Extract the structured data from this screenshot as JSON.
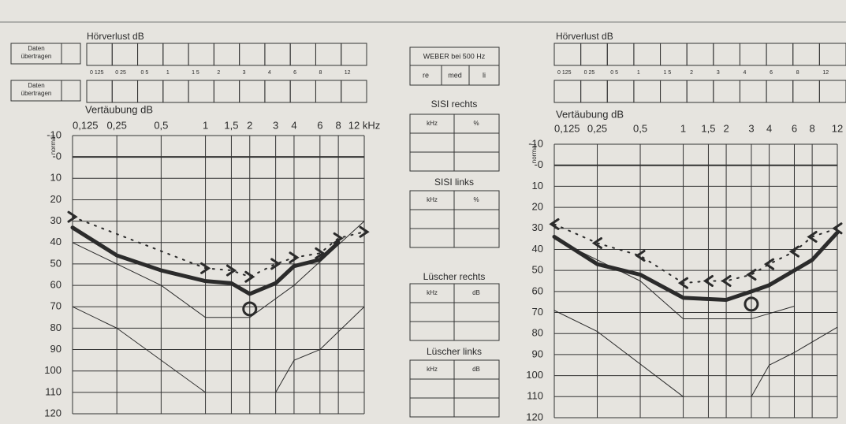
{
  "form": {
    "left": {
      "hoerverlust": "Hörverlust dB",
      "daten_1": [
        "Daten",
        "übertragen"
      ],
      "daten_2": [
        "Daten",
        "übertragen"
      ],
      "cell_labels": [
        "0 125",
        "0 25",
        "0 5",
        "1",
        "1 5",
        "2",
        "3",
        "4",
        "6",
        "8",
        "12"
      ],
      "vertaeubung": "Vertäubung dB"
    },
    "right": {
      "hoerverlust": "Hörverlust dB",
      "cell_labels": [
        "0 125",
        "0 25",
        "0 5",
        "1",
        "1 5",
        "2",
        "3",
        "4",
        "6",
        "8",
        "12"
      ],
      "vertaeubung": "Vertäubung dB"
    },
    "weber": {
      "title": "WEBER bei 500 Hz",
      "cells": [
        "re",
        "med",
        "li"
      ]
    },
    "sisi_rechts": {
      "title": "SISI rechts",
      "headers": [
        "kHz",
        "%"
      ]
    },
    "sisi_links": {
      "title": "SISI links",
      "headers": [
        "kHz",
        "%"
      ]
    },
    "luescher_rechts": {
      "title": "Lüscher rechts",
      "headers": [
        "kHz",
        "dB"
      ]
    },
    "luescher_links": {
      "title": "Lüscher links",
      "headers": [
        "kHz",
        "dB"
      ]
    }
  },
  "chart_data": [
    {
      "type": "line",
      "y_label": "normal",
      "xscale": "log",
      "y_inverted": true,
      "xlim": [
        0.125,
        12
      ],
      "ylim": [
        -10,
        120
      ],
      "xticks": [
        {
          "value": 0.125,
          "label": "0,125"
        },
        {
          "value": 0.25,
          "label": "0,25"
        },
        {
          "value": 0.5,
          "label": "0,5"
        },
        1,
        {
          "value": 1.5,
          "label": "1,5"
        },
        2,
        3,
        4,
        6,
        8,
        {
          "value": 12,
          "label": "12 kHz"
        }
      ],
      "yticks": [
        -10,
        {
          "value": 0,
          "label": "-0"
        },
        10,
        20,
        30,
        40,
        50,
        60,
        70,
        80,
        90,
        100,
        110,
        120
      ],
      "grid": true,
      "color": "#2b2b2b",
      "series": [
        {
          "x": [
            0.125,
            0.25,
            0.5,
            1,
            1.5,
            2,
            3,
            4,
            6,
            8
          ],
          "values": [
            33,
            46,
            53,
            58,
            59,
            64,
            59,
            51,
            48,
            40
          ],
          "width": 5,
          "marker": "none",
          "dash": false
        },
        {
          "x": [
            0.125,
            1,
            1.5,
            2,
            3,
            4,
            6,
            8,
            12
          ],
          "values": [
            28,
            52,
            53,
            56,
            50,
            47,
            45,
            38,
            35
          ],
          "width": 2,
          "marker": "arrow-right",
          "dash": true
        },
        {
          "x": [
            2
          ],
          "values": [
            71
          ],
          "width": 2,
          "marker": "circle",
          "dash": false
        },
        {
          "x": [
            0.125,
            0.5,
            1,
            2,
            4,
            12
          ],
          "values": [
            40,
            60,
            75,
            75,
            60,
            30
          ],
          "width": 1,
          "marker": "none",
          "dash": false
        },
        {
          "x": [
            0.125,
            0.25,
            1
          ],
          "values": [
            70,
            80,
            110
          ],
          "width": 1,
          "marker": "none",
          "dash": false
        },
        {
          "x": [
            3,
            4,
            6,
            12
          ],
          "values": [
            110,
            95,
            90,
            70
          ],
          "width": 1,
          "marker": "none",
          "dash": false
        }
      ]
    },
    {
      "type": "line",
      "y_label": "normal",
      "xscale": "log",
      "y_inverted": true,
      "xlim": [
        0.125,
        12
      ],
      "ylim": [
        -10,
        120
      ],
      "xticks": [
        {
          "value": 0.125,
          "label": "0,125"
        },
        {
          "value": 0.25,
          "label": "0,25"
        },
        {
          "value": 0.5,
          "label": "0,5"
        },
        1,
        {
          "value": 1.5,
          "label": "1,5"
        },
        2,
        3,
        4,
        6,
        8,
        12
      ],
      "yticks": [
        -10,
        {
          "value": 0,
          "label": "-0"
        },
        10,
        20,
        30,
        40,
        50,
        60,
        70,
        80,
        90,
        100,
        110,
        120
      ],
      "grid": true,
      "color": "#2b2b2b",
      "series": [
        {
          "x": [
            0.125,
            0.25,
            0.5,
            1,
            2,
            3,
            4,
            8,
            12
          ],
          "values": [
            34,
            47,
            52,
            63,
            64,
            60,
            57,
            45,
            32
          ],
          "width": 5,
          "marker": "none",
          "dash": false
        },
        {
          "x": [
            0.125,
            0.25,
            0.5,
            1,
            1.5,
            2,
            3,
            4,
            6,
            8,
            12
          ],
          "values": [
            28,
            37,
            43,
            56,
            55,
            55,
            52,
            47,
            41,
            34,
            30
          ],
          "width": 2,
          "marker": "arrow-left",
          "dash": true
        },
        {
          "x": [
            3
          ],
          "values": [
            66
          ],
          "width": 2,
          "marker": "circle",
          "dash": false
        },
        {
          "x": [
            0.125,
            0.5,
            1,
            3,
            6
          ],
          "values": [
            35,
            55,
            73,
            73,
            67
          ],
          "width": 1,
          "marker": "none",
          "dash": false
        },
        {
          "x": [
            0.125,
            0.25,
            1
          ],
          "values": [
            69,
            79,
            110
          ],
          "width": 1,
          "marker": "none",
          "dash": false
        },
        {
          "x": [
            3,
            4,
            6,
            12
          ],
          "values": [
            110,
            95,
            89,
            77
          ],
          "width": 1,
          "marker": "none",
          "dash": false
        }
      ]
    }
  ]
}
